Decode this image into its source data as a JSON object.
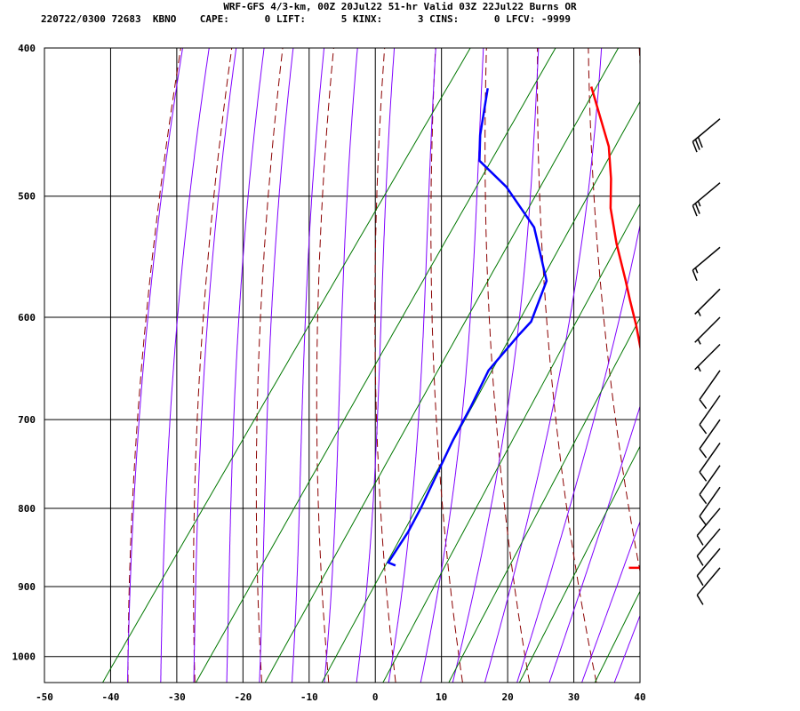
{
  "header": {
    "line1": "WRF-GFS 4/3-km, 00Z 20Jul22 51-hr Valid 03Z 22Jul22 Burns OR",
    "line2": "220722/0300 72683  KBNO    CAPE:      0 LIFT:      5 KINX:      3 CINS:      0 LFCV: -9999"
  },
  "colors": {
    "temperature": "#ff0000",
    "dewpoint": "#0000ff",
    "dry_adiabat": "#8b0000",
    "moist_adiabat": "#7f00ff",
    "mixing_ratio": "#007700",
    "grid": "#000000"
  },
  "chart_data": {
    "type": "line",
    "subtype": "skew-T log-P sounding",
    "xlabel": "",
    "ylabel": "",
    "xlim": [
      -50,
      40
    ],
    "ylim": [
      1040,
      400
    ],
    "y_scale": "log",
    "grid": true,
    "x_ticks": [
      -50,
      -40,
      -30,
      -20,
      -10,
      0,
      10,
      20,
      30,
      40
    ],
    "y_ticks": [
      400,
      500,
      600,
      700,
      800,
      900,
      1000
    ],
    "series": [
      {
        "role": "temperature",
        "color": "#ff0000",
        "points": [
          [
            26.7,
            875
          ],
          [
            30.0,
            875
          ],
          [
            31.2,
            866
          ],
          [
            30.3,
            855
          ],
          [
            28.3,
            832
          ],
          [
            26.1,
            808
          ],
          [
            23.0,
            771
          ],
          [
            18.5,
            725
          ],
          [
            12.5,
            673
          ],
          [
            7.5,
            638
          ],
          [
            3.2,
            607
          ],
          [
            -0.2,
            585
          ],
          [
            -3.0,
            567
          ],
          [
            -8.0,
            537
          ],
          [
            -12.5,
            509
          ],
          [
            -15.4,
            487
          ],
          [
            -19.0,
            464
          ],
          [
            -27.7,
            424
          ]
        ]
      },
      {
        "role": "dewpoint",
        "color": "#0000ff",
        "points": [
          [
            -8.8,
            872
          ],
          [
            -10.2,
            868
          ],
          [
            -10.3,
            829
          ],
          [
            -10.8,
            799
          ],
          [
            -12.8,
            722
          ],
          [
            -13.5,
            686
          ],
          [
            -14.5,
            650
          ],
          [
            -13.5,
            616
          ],
          [
            -13.0,
            604
          ],
          [
            -14.8,
            568
          ],
          [
            -22.1,
            524
          ],
          [
            -30.4,
            493
          ],
          [
            -37.1,
            474
          ],
          [
            -39.6,
            456
          ],
          [
            -43.2,
            425
          ]
        ]
      }
    ],
    "wind_barbs": [
      {
        "p": 875,
        "dir": 220,
        "kt": 10
      },
      {
        "p": 850,
        "dir": 220,
        "kt": 10
      },
      {
        "p": 825,
        "dir": 220,
        "kt": 10
      },
      {
        "p": 800,
        "dir": 220,
        "kt": 10
      },
      {
        "p": 775,
        "dir": 215,
        "kt": 10
      },
      {
        "p": 750,
        "dir": 215,
        "kt": 10
      },
      {
        "p": 725,
        "dir": 215,
        "kt": 10
      },
      {
        "p": 700,
        "dir": 215,
        "kt": 10
      },
      {
        "p": 675,
        "dir": 215,
        "kt": 10
      },
      {
        "p": 650,
        "dir": 215,
        "kt": 10
      },
      {
        "p": 625,
        "dir": 225,
        "kt": 5
      },
      {
        "p": 600,
        "dir": 225,
        "kt": 5
      },
      {
        "p": 575,
        "dir": 225,
        "kt": 5
      },
      {
        "p": 540,
        "dir": 230,
        "kt": 15
      },
      {
        "p": 490,
        "dir": 230,
        "kt": 25
      },
      {
        "p": 445,
        "dir": 230,
        "kt": 30
      }
    ]
  }
}
